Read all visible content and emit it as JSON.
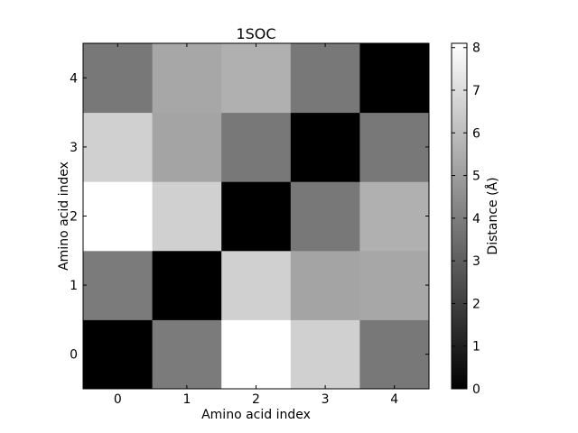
{
  "chart_data": {
    "type": "heatmap",
    "title": "1SOC",
    "xlabel": "Amino acid index",
    "ylabel": "Amino acid index",
    "x": [
      0,
      1,
      2,
      3,
      4
    ],
    "y": [
      0,
      1,
      2,
      3,
      4
    ],
    "x_tick_labels": [
      "0",
      "1",
      "2",
      "3",
      "4"
    ],
    "y_tick_labels": [
      "0",
      "1",
      "2",
      "3",
      "4"
    ],
    "values": [
      [
        0.0,
        3.9,
        8.1,
        6.6,
        3.8
      ],
      [
        3.9,
        0.0,
        6.6,
        5.2,
        5.3
      ],
      [
        8.1,
        6.6,
        0.0,
        3.8,
        5.6
      ],
      [
        6.6,
        5.2,
        3.8,
        0.0,
        3.8
      ],
      [
        3.8,
        5.3,
        5.6,
        3.8,
        0.0
      ]
    ],
    "colormap": "gray",
    "colorbar": {
      "label": "Distance (Å)",
      "range": [
        0,
        8.1
      ],
      "ticks": [
        0,
        1,
        2,
        3,
        4,
        5,
        6,
        7,
        8
      ],
      "tick_labels": [
        "0",
        "1",
        "2",
        "3",
        "4",
        "5",
        "6",
        "7",
        "8"
      ]
    },
    "grid": false
  }
}
